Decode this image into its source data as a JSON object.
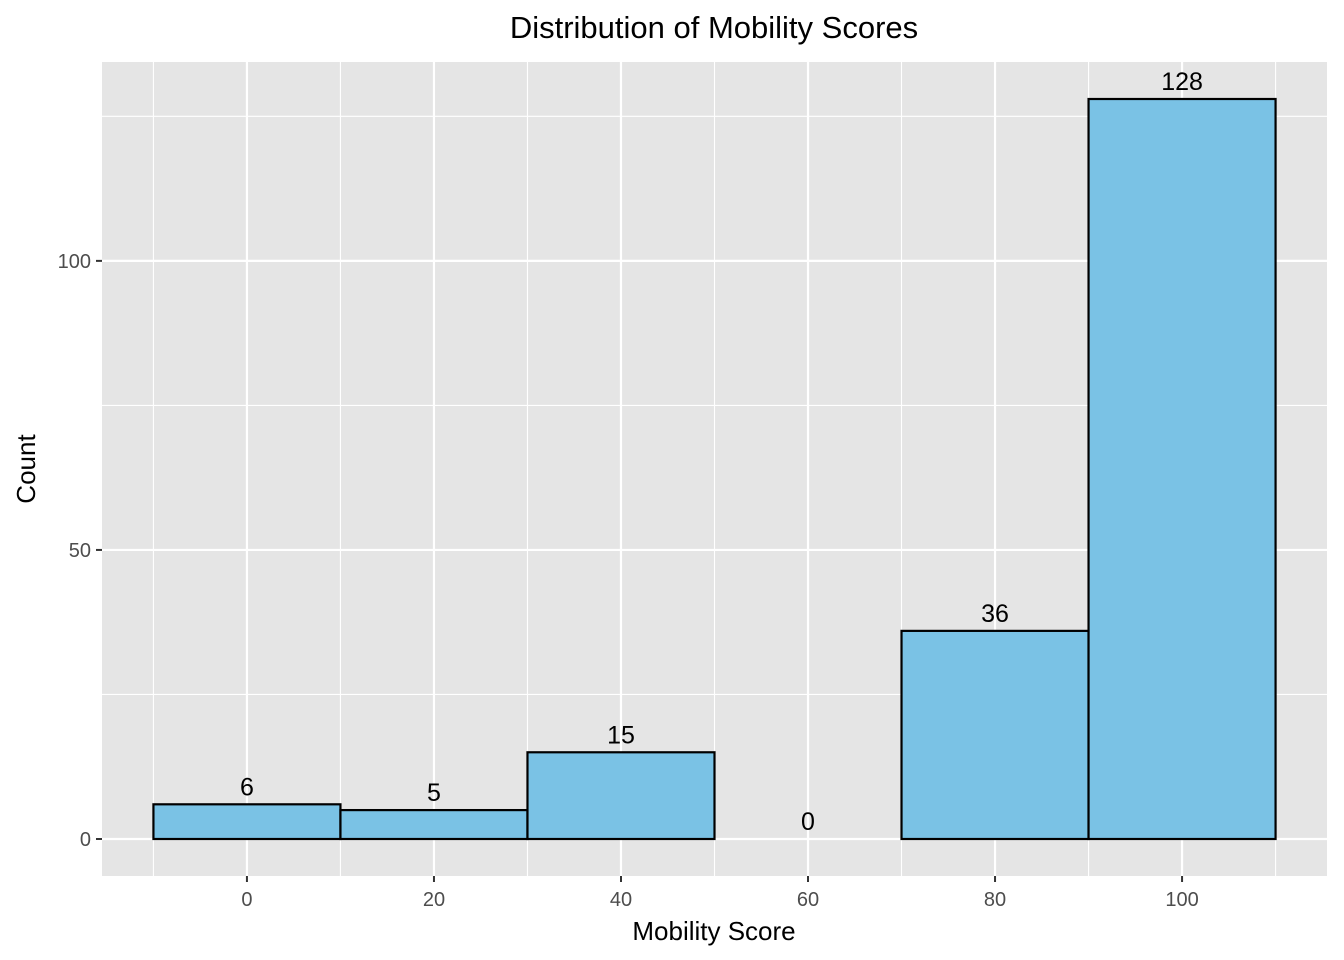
{
  "chart_data": {
    "type": "bar",
    "title": "Distribution of Mobility Scores",
    "xlabel": "Mobility Score",
    "ylabel": "Count",
    "bins": [
      {
        "start": -10,
        "end": 10,
        "count": 6,
        "label": "6"
      },
      {
        "start": 10,
        "end": 30,
        "count": 5,
        "label": "5"
      },
      {
        "start": 30,
        "end": 50,
        "count": 15,
        "label": "15"
      },
      {
        "start": 50,
        "end": 70,
        "count": 0,
        "label": "0"
      },
      {
        "start": 70,
        "end": 90,
        "count": 36,
        "label": "36"
      },
      {
        "start": 90,
        "end": 110,
        "count": 128,
        "label": "128"
      }
    ],
    "xlim": [
      -15.5,
      115.5
    ],
    "ylim": [
      -6.4,
      134.4
    ],
    "x_ticks": [
      0,
      20,
      40,
      60,
      80,
      100
    ],
    "x_tick_labels": [
      "0",
      "20",
      "40",
      "60",
      "80",
      "100"
    ],
    "y_ticks": [
      0,
      50,
      100
    ],
    "y_tick_labels": [
      "0",
      "50",
      "100"
    ],
    "grid": true,
    "colors": {
      "panel_bg": "#e5e5e5",
      "grid_major": "#ffffff",
      "bar_fill": "#7ac2e5",
      "bar_stroke": "#000000"
    }
  }
}
